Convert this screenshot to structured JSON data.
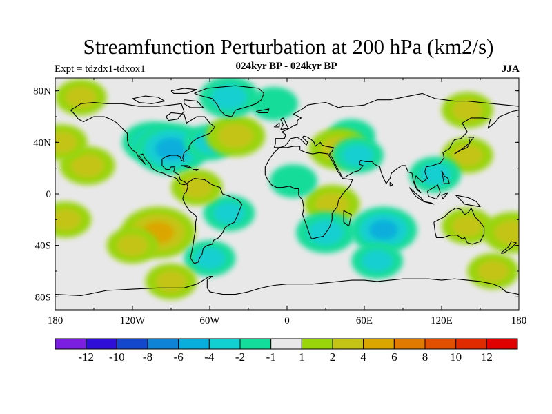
{
  "header": {
    "title": "Streamfunction Perturbation at 200 hPa (km2/s)",
    "experiment": "Expt = tdzdx1-tdxox1",
    "subtitle": "024kyr BP - 024kyr BP",
    "season": "JJA"
  },
  "map": {
    "projection": "cylindrical equidistant",
    "lon_range": [
      -180,
      180
    ],
    "lat_range": [
      -90,
      90
    ],
    "lat_ticks": [
      {
        "value": 80,
        "label": "80N"
      },
      {
        "value": 40,
        "label": "40N"
      },
      {
        "value": 0,
        "label": "0"
      },
      {
        "value": -40,
        "label": "40S"
      },
      {
        "value": -80,
        "label": "80S"
      }
    ],
    "lon_ticks": [
      {
        "value": -180,
        "label": "180"
      },
      {
        "value": -120,
        "label": "120W"
      },
      {
        "value": -60,
        "label": "60W"
      },
      {
        "value": 0,
        "label": "0"
      },
      {
        "value": 60,
        "label": "60E"
      },
      {
        "value": 120,
        "label": "120E"
      },
      {
        "value": 180,
        "label": "180"
      }
    ],
    "background_color": "#e8e8e8",
    "coastline_color": "#000000"
  },
  "chart_data": {
    "type": "heatmap",
    "title": "Streamfunction Perturbation at 200 hPa (km2/s)",
    "variable": "streamfunction perturbation",
    "units": "km2/s",
    "level": "200 hPa",
    "season": "JJA",
    "regions": [
      {
        "lon": -155,
        "lat": 22,
        "value": 2.5
      },
      {
        "lon": -175,
        "lat": 40,
        "value": 2
      },
      {
        "lon": -160,
        "lat": 75,
        "value": 2
      },
      {
        "lon": -105,
        "lat": 40,
        "value": -3
      },
      {
        "lon": -90,
        "lat": 35,
        "value": -5
      },
      {
        "lon": -60,
        "lat": 40,
        "value": -2
      },
      {
        "lon": -40,
        "lat": 45,
        "value": 3
      },
      {
        "lon": -45,
        "lat": 75,
        "value": -3
      },
      {
        "lon": -10,
        "lat": 70,
        "value": -1.5
      },
      {
        "lon": 50,
        "lat": 45,
        "value": -1.5
      },
      {
        "lon": 40,
        "lat": 35,
        "value": 3
      },
      {
        "lon": 55,
        "lat": 30,
        "value": -2
      },
      {
        "lon": 140,
        "lat": 65,
        "value": 2
      },
      {
        "lon": 140,
        "lat": 30,
        "value": 2
      },
      {
        "lon": 115,
        "lat": 15,
        "value": -2
      },
      {
        "lon": 35,
        "lat": -8,
        "value": 2.5
      },
      {
        "lon": 5,
        "lat": 10,
        "value": -1.5
      },
      {
        "lon": -100,
        "lat": -30,
        "value": 5
      },
      {
        "lon": -120,
        "lat": -40,
        "value": 2
      },
      {
        "lon": -45,
        "lat": -15,
        "value": -2
      },
      {
        "lon": -70,
        "lat": 5,
        "value": 2
      },
      {
        "lon": -60,
        "lat": -50,
        "value": -2
      },
      {
        "lon": 30,
        "lat": -30,
        "value": -3
      },
      {
        "lon": 75,
        "lat": -28,
        "value": -4
      },
      {
        "lon": 140,
        "lat": -25,
        "value": 2
      },
      {
        "lon": 160,
        "lat": -60,
        "value": 2
      },
      {
        "lon": 70,
        "lat": -52,
        "value": -2
      },
      {
        "lon": -172,
        "lat": -20,
        "value": 2
      },
      {
        "lon": 175,
        "lat": -30,
        "value": 3
      },
      {
        "lon": -90,
        "lat": -68,
        "value": 2
      }
    ]
  },
  "colorbar": {
    "colors": [
      "#7a1fe0",
      "#2f0fd8",
      "#1448cc",
      "#0f84d6",
      "#09aedc",
      "#12cfd0",
      "#14dc9a",
      "#e8e8e8",
      "#9ad40a",
      "#c4c416",
      "#dca600",
      "#e07a00",
      "#e05000",
      "#e02a00",
      "#e00000"
    ],
    "labels": [
      "-12",
      "-10",
      "-8",
      "-6",
      "-4",
      "-2",
      "-1",
      "1",
      "2",
      "4",
      "6",
      "8",
      "10",
      "12"
    ]
  }
}
